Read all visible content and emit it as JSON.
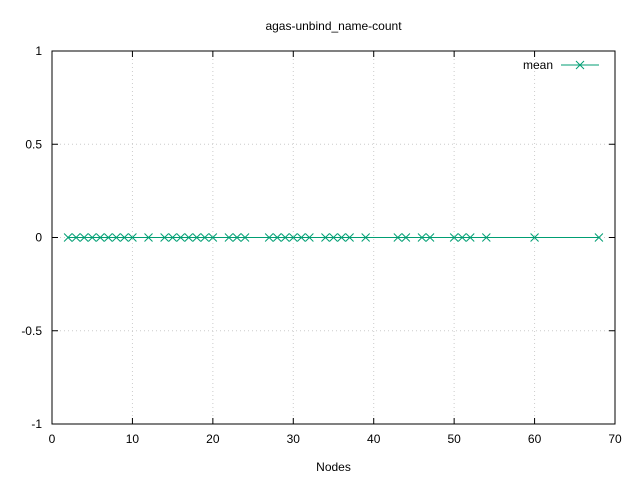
{
  "chart_data": {
    "type": "line",
    "title": "agas-unbind_name-count",
    "xlabel": "Nodes",
    "ylabel": "",
    "xlim": [
      0,
      70
    ],
    "ylim": [
      -1,
      1
    ],
    "xticks": [
      0,
      10,
      20,
      30,
      40,
      50,
      60,
      70
    ],
    "xtick_labels": [
      "0",
      "10",
      "20",
      "30",
      "40",
      "50",
      "60",
      "70"
    ],
    "yticks": [
      -1,
      -0.5,
      0,
      0.5,
      1
    ],
    "ytick_labels": [
      "-1",
      "-0.5",
      "0",
      "0.5",
      "1"
    ],
    "grid": true,
    "legend_position": "top-right",
    "series": [
      {
        "name": "mean",
        "color": "#009e73",
        "marker": "x",
        "x": [
          2,
          3,
          4,
          5,
          6,
          7,
          8,
          9,
          10,
          12,
          14,
          15,
          16,
          17,
          18,
          19,
          20,
          22,
          23,
          24,
          27,
          28,
          29,
          30,
          31,
          32,
          34,
          35,
          36,
          37,
          39,
          43,
          44,
          46,
          47,
          50,
          51,
          52,
          54,
          60,
          68
        ],
        "y": [
          0,
          0,
          0,
          0,
          0,
          0,
          0,
          0,
          0,
          0,
          0,
          0,
          0,
          0,
          0,
          0,
          0,
          0,
          0,
          0,
          0,
          0,
          0,
          0,
          0,
          0,
          0,
          0,
          0,
          0,
          0,
          0,
          0,
          0,
          0,
          0,
          0,
          0,
          0,
          0,
          0
        ]
      }
    ]
  }
}
